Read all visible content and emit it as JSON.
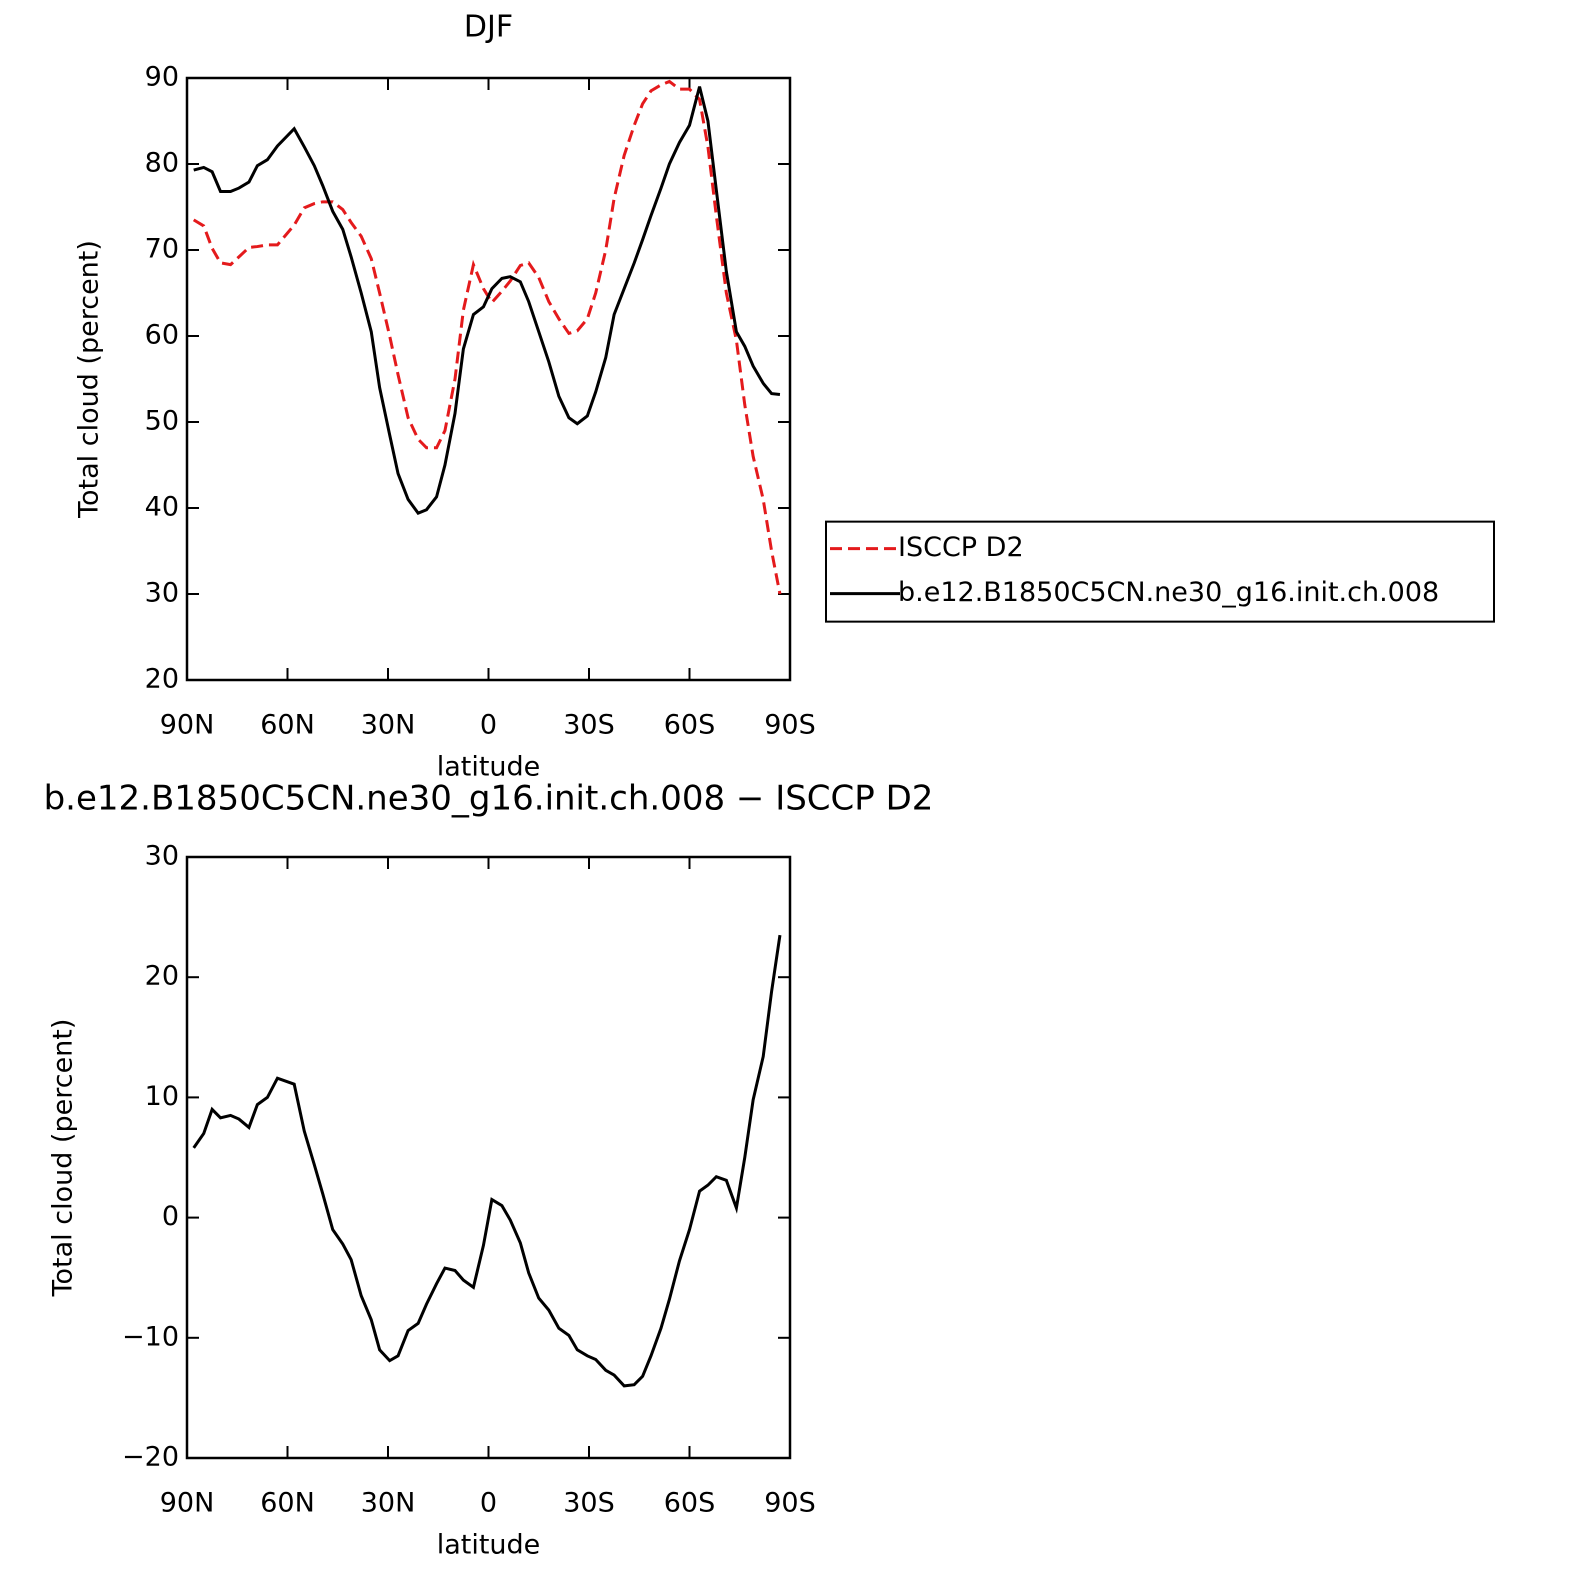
{
  "chart_data": [
    {
      "type": "line",
      "title": "DJF",
      "xlabel": "latitude",
      "ylabel": "Total cloud (percent)",
      "x": [
        88,
        85,
        82.5,
        80,
        77,
        74.5,
        71.5,
        69,
        66,
        63,
        58,
        55,
        52,
        49.5,
        46.5,
        43.5,
        41,
        38,
        35,
        32.5,
        29.5,
        27,
        24,
        21,
        18.5,
        15.5,
        13,
        10,
        7.5,
        4.5,
        1.5,
        -1,
        -4,
        -6.5,
        -9.5,
        -12,
        -15,
        -18,
        -21,
        -24,
        -26.5,
        -29.5,
        -32,
        -35,
        -37.5,
        -40.5,
        -43.5,
        -46,
        -48.5,
        -51.5,
        -54,
        -57,
        -60,
        -63,
        -65.5,
        -68,
        -71,
        -74,
        -76.5,
        -79,
        -82,
        -84.5,
        -87
      ],
      "xlim": [
        90,
        -90
      ],
      "xticks": [
        {
          "value": 90,
          "label": "90N"
        },
        {
          "value": 60,
          "label": "60N"
        },
        {
          "value": 30,
          "label": "30N"
        },
        0,
        {
          "value": -30,
          "label": "30S"
        },
        {
          "value": -60,
          "label": "60S"
        },
        {
          "value": -90,
          "label": "90S"
        }
      ],
      "ylim": [
        20,
        90
      ],
      "yticks": [
        20,
        30,
        40,
        50,
        60,
        70,
        80,
        90
      ],
      "legend": "right",
      "series": [
        {
          "name": "ISCCP D2",
          "color": "#e41a1c",
          "style": "dashed",
          "values": [
            73.5,
            72.8,
            70.2,
            68.5,
            68.3,
            69.2,
            70.3,
            70.4,
            70.6,
            70.6,
            72.9,
            74.9,
            75.4,
            75.6,
            75.6,
            74.7,
            73.2,
            71.6,
            69.0,
            65.0,
            60.0,
            55.5,
            50.5,
            48.0,
            47.0,
            47.0,
            49.0,
            55.0,
            63.0,
            68.3,
            65.5,
            63.9,
            65.2,
            66.4,
            68.2,
            68.5,
            66.8,
            64.0,
            62.0,
            60.3,
            60.6,
            62.0,
            65.0,
            70.0,
            76.0,
            81.0,
            84.5,
            87.0,
            88.5,
            89.2,
            89.6,
            88.7,
            88.7,
            87.5,
            82.0,
            74.0,
            65.0,
            59.5,
            52.0,
            46.0,
            41.0,
            35.0,
            30.0
          ]
        },
        {
          "name": "b.e12.B1850C5CN.ne30_g16.init.ch.008",
          "color": "#000000",
          "style": "solid",
          "values": [
            79.3,
            79.6,
            79.1,
            76.8,
            76.8,
            77.2,
            77.9,
            79.8,
            80.5,
            82.1,
            84.1,
            82.0,
            79.8,
            77.5,
            74.5,
            72.4,
            69.2,
            65.0,
            60.5,
            54.0,
            48.5,
            44.0,
            41.0,
            39.4,
            39.8,
            41.3,
            45.0,
            51.0,
            58.5,
            62.5,
            63.4,
            65.5,
            66.7,
            66.9,
            66.3,
            64.0,
            60.5,
            57.0,
            53.0,
            50.5,
            49.8,
            50.7,
            53.5,
            57.5,
            62.5,
            65.5,
            68.5,
            71.2,
            74.0,
            77.2,
            80.0,
            82.5,
            84.5,
            89.0,
            85.0,
            77.0,
            67.5,
            60.5,
            58.8,
            56.5,
            54.5,
            53.3,
            53.2
          ]
        }
      ]
    },
    {
      "type": "line",
      "title": "b.e12.B1850C5CN.ne30_g16.init.ch.008 − ISCCP D2",
      "xlabel": "latitude",
      "ylabel": "Total cloud (percent)",
      "x": [
        88,
        85,
        82.5,
        80,
        77,
        74.5,
        71.5,
        69,
        66,
        63,
        58,
        55,
        52,
        49.5,
        46.5,
        43.5,
        41,
        38,
        35,
        32.5,
        29.5,
        27,
        24,
        21,
        18.5,
        15.5,
        13,
        10,
        7.5,
        4.5,
        1.5,
        -1,
        -4,
        -6.5,
        -9.5,
        -12,
        -15,
        -18,
        -21,
        -24,
        -26.5,
        -29.5,
        -32,
        -35,
        -37.5,
        -40.5,
        -43.5,
        -46,
        -48.5,
        -51.5,
        -54,
        -57,
        -60,
        -63,
        -65.5,
        -68,
        -71,
        -74,
        -76.5,
        -79,
        -82,
        -84.5,
        -87
      ],
      "xlim": [
        90,
        -90
      ],
      "xticks": [
        {
          "value": 90,
          "label": "90N"
        },
        {
          "value": 60,
          "label": "60N"
        },
        {
          "value": 30,
          "label": "30N"
        },
        0,
        {
          "value": -30,
          "label": "30S"
        },
        {
          "value": -60,
          "label": "60S"
        },
        {
          "value": -90,
          "label": "90S"
        }
      ],
      "ylim": [
        -20,
        30
      ],
      "yticks": [
        {
          "value": -20,
          "label": "−20"
        },
        {
          "value": -10,
          "label": "−10"
        },
        0,
        10,
        20,
        30
      ],
      "series": [
        {
          "color": "#000000",
          "style": "solid",
          "values": [
            5.8,
            7.0,
            9.0,
            8.3,
            8.5,
            8.2,
            7.5,
            9.4,
            10.0,
            11.6,
            11.1,
            7.2,
            4.4,
            2.0,
            -1.0,
            -2.2,
            -3.5,
            -6.5,
            -8.5,
            -11.0,
            -11.9,
            -11.5,
            -9.4,
            -8.8,
            -7.2,
            -5.5,
            -4.2,
            -4.4,
            -5.2,
            -5.8,
            -2.3,
            1.5,
            1.0,
            -0.2,
            -2.1,
            -4.6,
            -6.7,
            -7.7,
            -9.2,
            -9.8,
            -11.0,
            -11.5,
            -11.8,
            -12.7,
            -13.1,
            -14.0,
            -13.9,
            -13.2,
            -11.5,
            -9.2,
            -6.8,
            -3.6,
            -1.0,
            2.2,
            2.7,
            3.4,
            3.1,
            0.8,
            5.0,
            9.8,
            13.4,
            18.8,
            23.5
          ]
        }
      ]
    }
  ]
}
